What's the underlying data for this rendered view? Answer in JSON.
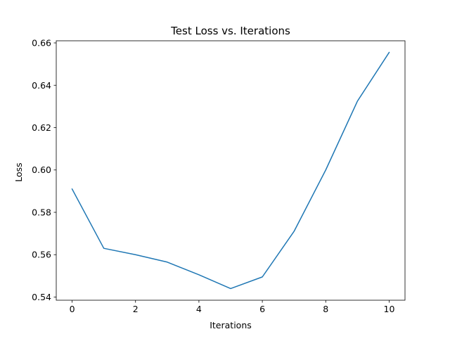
{
  "chart_data": {
    "type": "line",
    "title": "Test Loss vs. Iterations",
    "xlabel": "Iterations",
    "ylabel": "Loss",
    "xlim": [
      -0.5,
      10.5
    ],
    "ylim": [
      0.5385,
      0.661
    ],
    "x_ticks": [
      0,
      2,
      4,
      6,
      8,
      10
    ],
    "x_tick_labels": [
      "0",
      "2",
      "4",
      "6",
      "8",
      "10"
    ],
    "y_ticks": [
      0.54,
      0.56,
      0.58,
      0.6,
      0.62,
      0.64,
      0.66
    ],
    "y_tick_labels": [
      "0.54",
      "0.56",
      "0.58",
      "0.60",
      "0.62",
      "0.64",
      "0.66"
    ],
    "grid": false,
    "series": [
      {
        "color": "#1f77b4",
        "x": [
          0,
          1,
          2,
          3,
          4,
          5,
          6,
          7,
          8,
          9,
          10
        ],
        "y": [
          0.591,
          0.563,
          0.56,
          0.5565,
          0.5505,
          0.544,
          0.5495,
          0.571,
          0.6,
          0.6325,
          0.6555
        ]
      }
    ]
  }
}
